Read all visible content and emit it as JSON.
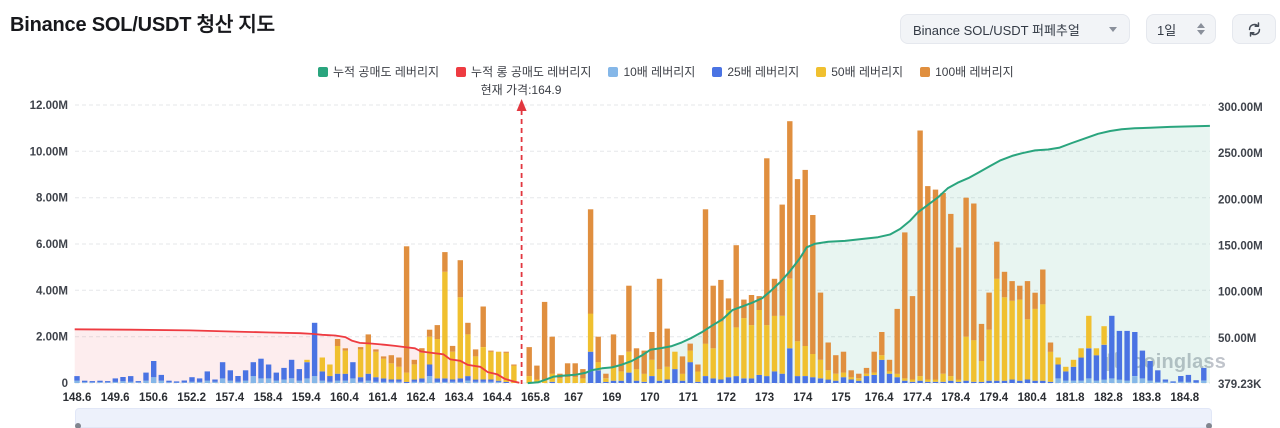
{
  "header": {
    "title": "Binance SOL/USDT 청산 지도",
    "pair_select": {
      "value": "Binance SOL/USDT 퍼페추얼"
    },
    "interval_select": {
      "value": "1일"
    }
  },
  "legend": [
    {
      "label": "누적 공매도 레버리지",
      "color": "#2aa57e"
    },
    {
      "label": "누적 롱 공매도 레버리지",
      "color": "#ee3b41"
    },
    {
      "label": "10배 레버리지",
      "color": "#85b7e8"
    },
    {
      "label": "25배 레버리지",
      "color": "#4a73e3"
    },
    {
      "label": "50배 레버리지",
      "color": "#f0c02f"
    },
    {
      "label": "100배 레버리지",
      "color": "#e08f3f"
    }
  ],
  "current_price_label": "현재 가격:164.9",
  "watermark": "coinglass",
  "chart_data": {
    "type": "mixed-stacked-bar-line",
    "title": "Binance SOL/USDT 청산 지도",
    "current_price": 164.9,
    "current_price_position": 58,
    "x_ticks": [
      "148.6",
      "149.6",
      "150.6",
      "152.2",
      "157.4",
      "158.4",
      "159.4",
      "160.4",
      "161.4",
      "162.4",
      "163.4",
      "164.4",
      "165.8",
      "167",
      "169",
      "170",
      "171",
      "172",
      "173",
      "174",
      "175",
      "176.4",
      "177.4",
      "178.4",
      "179.4",
      "180.4",
      "181.8",
      "182.8",
      "183.8",
      "184.8"
    ],
    "left_axis": {
      "ticks": [
        "12.00M",
        "10.00M",
        "8.00M",
        "6.00M",
        "4.00M",
        "2.00M",
        "0"
      ],
      "max_m": 12,
      "min_m": 0
    },
    "right_axis": {
      "ticks": [
        "300.00M",
        "250.00M",
        "200.00M",
        "150.00M",
        "100.00M",
        "50.00M",
        "379.23K"
      ],
      "max_m": 300,
      "min_m": 0.379
    },
    "bar_series": [
      {
        "name": "10배 레버리지",
        "color": "#85b7e8"
      },
      {
        "name": "25배 레버리지",
        "color": "#4a73e3"
      },
      {
        "name": "50배 레버리지",
        "color": "#f0c02f"
      },
      {
        "name": "100배 레버리지",
        "color": "#e08f3f"
      }
    ],
    "bars_unit": "millions USD, stacked [10x,25x,50x,100x], one entry per price level",
    "bars": [
      [
        0.1,
        0.2,
        0,
        0
      ],
      [
        0.04,
        0.06,
        0,
        0
      ],
      [
        0.03,
        0.05,
        0,
        0
      ],
      [
        0.04,
        0.06,
        0,
        0
      ],
      [
        0.03,
        0.05,
        0,
        0
      ],
      [
        0.05,
        0.15,
        0,
        0
      ],
      [
        0.08,
        0.18,
        0,
        0
      ],
      [
        0.06,
        0.24,
        0,
        0
      ],
      [
        0.03,
        0.05,
        0,
        0
      ],
      [
        0.1,
        0.35,
        0,
        0
      ],
      [
        0.25,
        0.7,
        0,
        0
      ],
      [
        0.1,
        0.25,
        0,
        0
      ],
      [
        0.03,
        0.07,
        0,
        0
      ],
      [
        0.02,
        0.05,
        0,
        0
      ],
      [
        0.03,
        0.08,
        0,
        0
      ],
      [
        0.05,
        0.2,
        0,
        0
      ],
      [
        0.05,
        0.15,
        0,
        0
      ],
      [
        0.1,
        0.4,
        0,
        0
      ],
      [
        0.05,
        0.1,
        0,
        0
      ],
      [
        0.2,
        0.7,
        0,
        0
      ],
      [
        0.1,
        0.45,
        0,
        0
      ],
      [
        0.05,
        0.25,
        0,
        0
      ],
      [
        0.1,
        0.45,
        0,
        0
      ],
      [
        0.3,
        0.6,
        0,
        0
      ],
      [
        0.2,
        0.85,
        0,
        0
      ],
      [
        0.2,
        0.6,
        0,
        0
      ],
      [
        0.1,
        0.35,
        0,
        0
      ],
      [
        0.15,
        0.5,
        0,
        0
      ],
      [
        0.2,
        0.8,
        0,
        0
      ],
      [
        0.1,
        0.5,
        0,
        0
      ],
      [
        0.2,
        0.7,
        0.1,
        0
      ],
      [
        0.3,
        2.3,
        0,
        0
      ],
      [
        0.1,
        0.4,
        0.6,
        0
      ],
      [
        0.05,
        0.25,
        0.5,
        0
      ],
      [
        0.1,
        0.3,
        1.2,
        0.3
      ],
      [
        0.1,
        0.3,
        1.0,
        0.1
      ],
      [
        0.2,
        0.7,
        0,
        0
      ],
      [
        0.05,
        0.2,
        1.2,
        0.1
      ],
      [
        0.1,
        0.3,
        1.3,
        0.4
      ],
      [
        0.05,
        0.2,
        1.1,
        0.1
      ],
      [
        0.05,
        0.15,
        0.85,
        0.1
      ],
      [
        0.05,
        0.1,
        0.7,
        0.35
      ],
      [
        0.05,
        0.1,
        0.55,
        0.4
      ],
      [
        0,
        0.05,
        0.4,
        5.45
      ],
      [
        0.05,
        0.1,
        0.65,
        0.2
      ],
      [
        0.05,
        0.15,
        1.1,
        0.2
      ],
      [
        0.3,
        0.5,
        1.2,
        0.3
      ],
      [
        0.05,
        0.15,
        1.7,
        0.6
      ],
      [
        0.05,
        0.15,
        4.6,
        0.85
      ],
      [
        0.05,
        0.1,
        1.2,
        0.25
      ],
      [
        0.05,
        0.15,
        3.5,
        1.6
      ],
      [
        0.1,
        0.2,
        1.8,
        0.5
      ],
      [
        0.05,
        0.1,
        1.0,
        0.3
      ],
      [
        0.05,
        0.1,
        1.4,
        1.75
      ],
      [
        0.05,
        0.1,
        1.2,
        0.05
      ],
      [
        0.05,
        0.05,
        1.25,
        0
      ],
      [
        0,
        0.05,
        1.25,
        0.05
      ],
      [
        0,
        0,
        0.75,
        0.05
      ],
      [
        0,
        0,
        0,
        0
      ],
      [
        0,
        0,
        0.3,
        1.25
      ],
      [
        0,
        0,
        0.15,
        0.6
      ],
      [
        0,
        0,
        0.1,
        3.4
      ],
      [
        0,
        0.05,
        0.35,
        1.6
      ],
      [
        0,
        0,
        0.2,
        0.2
      ],
      [
        0,
        0,
        0.25,
        0.6
      ],
      [
        0,
        0,
        0.25,
        0.6
      ],
      [
        0,
        0,
        0.2,
        0.4
      ],
      [
        0,
        1.35,
        1.65,
        4.5
      ],
      [
        0,
        0.55,
        0.35,
        1.1
      ],
      [
        0,
        0.05,
        0.15,
        0.2
      ],
      [
        0,
        0.1,
        0.6,
        1.4
      ],
      [
        0,
        0.1,
        0.4,
        0.7
      ],
      [
        0,
        0.45,
        0.9,
        2.85
      ],
      [
        0,
        0.1,
        0.5,
        0.9
      ],
      [
        0,
        0.05,
        0.35,
        1.0
      ],
      [
        0,
        0.3,
        0.7,
        1.2
      ],
      [
        0,
        0.1,
        0.5,
        3.9
      ],
      [
        0,
        0.15,
        0.55,
        1.65
      ],
      [
        0,
        0.6,
        0.75,
        0
      ],
      [
        0,
        0.1,
        0.3,
        0.75
      ],
      [
        0,
        0.9,
        0.5,
        0.3
      ],
      [
        0,
        0.05,
        0.45,
        0.3
      ],
      [
        0,
        0.3,
        1.4,
        5.8
      ],
      [
        0,
        0.2,
        1.3,
        2.7
      ],
      [
        0,
        0.15,
        2.5,
        1.8
      ],
      [
        0,
        0.25,
        2.9,
        0.5
      ],
      [
        0,
        0.3,
        2.1,
        3.55
      ],
      [
        0,
        0.2,
        2.6,
        0.8
      ],
      [
        0,
        0.2,
        2.3,
        1.3
      ],
      [
        0,
        0.35,
        2.8,
        0.6
      ],
      [
        0,
        0.3,
        2.2,
        7.2
      ],
      [
        0,
        0.5,
        2.4,
        1.6
      ],
      [
        0,
        0.4,
        2.5,
        4.8
      ],
      [
        0,
        1.5,
        3.0,
        6.8
      ],
      [
        0,
        0.3,
        1.5,
        7.0
      ],
      [
        0,
        0.3,
        1.3,
        7.6
      ],
      [
        0,
        0.25,
        1.0,
        6.0
      ],
      [
        0,
        0.2,
        0.8,
        2.9
      ],
      [
        0,
        0.15,
        0.4,
        1.2
      ],
      [
        0,
        0.1,
        0.3,
        0.8
      ],
      [
        0,
        0.25,
        0.2,
        0.9
      ],
      [
        0,
        0.15,
        0.1,
        0.3
      ],
      [
        0,
        0.1,
        0.1,
        0.2
      ],
      [
        0,
        0.3,
        0.1,
        0.25
      ],
      [
        0,
        0.35,
        0.1,
        0.9
      ],
      [
        0,
        1.0,
        0.2,
        1.0
      ],
      [
        0,
        0.4,
        0.1,
        0.5
      ],
      [
        0,
        0.25,
        0.15,
        2.8
      ],
      [
        0,
        0.1,
        0.1,
        6.3
      ],
      [
        0,
        0.05,
        0.1,
        3.6
      ],
      [
        0,
        0.1,
        0.2,
        10.6
      ],
      [
        0,
        0.05,
        0.1,
        8.35
      ],
      [
        0,
        0.05,
        0.1,
        8.2
      ],
      [
        0,
        0.05,
        0.35,
        7.8
      ],
      [
        0,
        0.1,
        0.2,
        7.0
      ],
      [
        0,
        0.05,
        0.1,
        5.7
      ],
      [
        0,
        0.1,
        1.9,
        6.0
      ],
      [
        0,
        0.05,
        1.8,
        5.9
      ],
      [
        0,
        0.05,
        0.9,
        1.6
      ],
      [
        0,
        0.1,
        2.2,
        1.6
      ],
      [
        0,
        0.1,
        4.4,
        1.6
      ],
      [
        0,
        0.1,
        3.6,
        1.1
      ],
      [
        0,
        0.15,
        3.4,
        0.85
      ],
      [
        0,
        0.1,
        3.5,
        0.6
      ],
      [
        0,
        0.15,
        2.6,
        1.65
      ],
      [
        0,
        0.1,
        3.1,
        0.7
      ],
      [
        0,
        0.1,
        3.3,
        1.5
      ],
      [
        0,
        0.05,
        1.3,
        0.4
      ],
      [
        0.2,
        0.6,
        0.3,
        0
      ],
      [
        0.1,
        0.4,
        0.2,
        0
      ],
      [
        0.1,
        0.6,
        0.3,
        0
      ],
      [
        0.1,
        1.0,
        0.4,
        0
      ],
      [
        0.2,
        1.3,
        1.4,
        0
      ],
      [
        0.1,
        1.1,
        0.3,
        0
      ],
      [
        0.15,
        1.5,
        0.8,
        0
      ],
      [
        0.2,
        2.7,
        0,
        0
      ],
      [
        0.15,
        2.1,
        0,
        0
      ],
      [
        0.1,
        2.15,
        0,
        0
      ],
      [
        0.3,
        1.9,
        0,
        0
      ],
      [
        0.2,
        1.2,
        0,
        0
      ],
      [
        0.1,
        0.85,
        0,
        0
      ],
      [
        0.05,
        0.5,
        0,
        0
      ],
      [
        0.05,
        0.1,
        0,
        0
      ],
      [
        0.02,
        0.05,
        0,
        0
      ],
      [
        0.05,
        0.25,
        0,
        0
      ],
      [
        0.05,
        0.3,
        0,
        0
      ],
      [
        0.02,
        0.1,
        0,
        0
      ],
      [
        0.1,
        0.55,
        0,
        0
      ]
    ],
    "long_line": {
      "name": "누적 롱 공매도 레버리지",
      "color": "#ee3b41",
      "axis": "left",
      "unit": "M",
      "points": [
        [
          -0.3,
          2.32
        ],
        [
          6.9,
          2.3
        ],
        [
          14.7,
          2.27
        ],
        [
          20.6,
          2.22
        ],
        [
          25.2,
          2.18
        ],
        [
          29.1,
          2.15
        ],
        [
          30.7,
          2.12
        ],
        [
          32.0,
          2.08
        ],
        [
          33.7,
          2.05
        ],
        [
          35.0,
          1.98
        ],
        [
          35.9,
          1.82
        ],
        [
          36.9,
          1.73
        ],
        [
          38.5,
          1.7
        ],
        [
          40.2,
          1.65
        ],
        [
          41.5,
          1.6
        ],
        [
          42.8,
          1.55
        ],
        [
          44.1,
          1.5
        ],
        [
          44.9,
          1.36
        ],
        [
          46.3,
          1.3
        ],
        [
          47.8,
          1.24
        ],
        [
          48.7,
          1.02
        ],
        [
          50.0,
          0.96
        ],
        [
          51.0,
          0.78
        ],
        [
          52.6,
          0.7
        ],
        [
          53.6,
          0.47
        ],
        [
          54.8,
          0.38
        ],
        [
          55.8,
          0.18
        ],
        [
          56.8,
          0.08
        ],
        [
          57.7,
          0.01
        ]
      ]
    },
    "short_line": {
      "name": "누적 공매도 레버리지",
      "color": "#2aa57e",
      "axis": "right",
      "unit": "M",
      "points": [
        [
          58.8,
          1
        ],
        [
          60.2,
          2
        ],
        [
          61.2,
          5
        ],
        [
          62.2,
          8
        ],
        [
          63.3,
          9
        ],
        [
          65.0,
          10
        ],
        [
          66.3,
          12
        ],
        [
          67.2,
          15
        ],
        [
          68.5,
          17
        ],
        [
          69.8,
          18
        ],
        [
          71.1,
          21
        ],
        [
          72.4,
          25
        ],
        [
          73.7,
          31
        ],
        [
          74.8,
          37
        ],
        [
          76.3,
          39
        ],
        [
          77.6,
          41
        ],
        [
          78.9,
          45
        ],
        [
          80.2,
          50
        ],
        [
          81.5,
          56
        ],
        [
          82.8,
          63
        ],
        [
          84.2,
          70
        ],
        [
          85.5,
          80
        ],
        [
          86.8,
          84
        ],
        [
          88.1,
          88
        ],
        [
          89.4,
          93
        ],
        [
          90.4,
          100
        ],
        [
          91.7,
          110
        ],
        [
          93.0,
          122
        ],
        [
          94.3,
          136
        ],
        [
          95.2,
          148
        ],
        [
          96.3,
          152
        ],
        [
          98.0,
          154
        ],
        [
          100.2,
          155
        ],
        [
          102.4,
          157
        ],
        [
          104.5,
          159
        ],
        [
          106.1,
          162
        ],
        [
          107.4,
          168
        ],
        [
          108.7,
          177
        ],
        [
          109.7,
          186
        ],
        [
          111.0,
          194
        ],
        [
          112.3,
          202
        ],
        [
          113.6,
          212
        ],
        [
          114.9,
          218
        ],
        [
          116.3,
          223
        ],
        [
          117.6,
          229
        ],
        [
          119.1,
          236
        ],
        [
          120.4,
          242
        ],
        [
          122.0,
          247
        ],
        [
          123.3,
          250
        ],
        [
          125.0,
          253
        ],
        [
          126.7,
          254
        ],
        [
          128.2,
          256
        ],
        [
          129.8,
          261
        ],
        [
          131.5,
          266
        ],
        [
          133.2,
          271
        ],
        [
          134.8,
          274
        ],
        [
          136.3,
          276
        ],
        [
          138.0,
          277
        ],
        [
          140.0,
          277.5
        ],
        [
          142.6,
          278.5
        ],
        [
          145.2,
          279
        ],
        [
          147.8,
          279.5
        ]
      ]
    },
    "fills": {
      "long_area": "rgba(238,59,65,0.09)",
      "short_area": "rgba(42,165,126,0.11)"
    }
  }
}
